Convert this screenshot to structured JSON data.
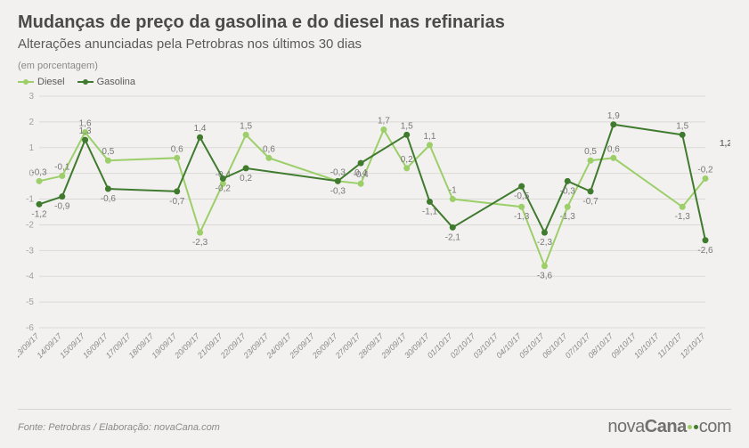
{
  "title": "Mudanças de preço da gasolina e do diesel nas refinarias",
  "subtitle": "Alterações anunciadas pela Petrobras nos últimos 30 dias",
  "unit": "(em porcentagem)",
  "legend": [
    {
      "label": "Diesel",
      "color": "#9ccf6a"
    },
    {
      "label": "Gasolina",
      "color": "#3f7a2e"
    }
  ],
  "chart": {
    "type": "line",
    "background_color": "#f2f1ef",
    "grid_color": "#dcdad6",
    "ylim": [
      -6,
      3
    ],
    "ytick_step": 1,
    "x_labels": [
      "13/09/17",
      "14/09/17",
      "15/09/17",
      "16/09/17",
      "17/09/17",
      "18/09/17",
      "19/09/17",
      "20/09/17",
      "21/09/17",
      "22/09/17",
      "23/09/17",
      "24/09/17",
      "25/09/17",
      "26/09/17",
      "27/09/17",
      "28/09/17",
      "29/09/17",
      "30/09/17",
      "01/10/17",
      "02/10/17",
      "03/10/17",
      "04/10/17",
      "05/10/17",
      "06/10/17",
      "07/10/17",
      "08/10/17",
      "09/10/17",
      "10/10/17",
      "11/10/17",
      "12/10/17"
    ],
    "series": [
      {
        "name": "Diesel",
        "color": "#9ccf6a",
        "line_width": 2,
        "marker_radius": 3.5,
        "label_color": "#787878",
        "label_fontsize": 10,
        "values": [
          -0.3,
          -0.1,
          1.6,
          0.5,
          null,
          null,
          0.6,
          -2.3,
          -0.4,
          1.5,
          0.6,
          null,
          null,
          -0.3,
          -0.4,
          1.7,
          0.2,
          1.1,
          -1,
          null,
          null,
          -1.3,
          -3.6,
          -1.3,
          0.5,
          0.6,
          null,
          null,
          -1.3,
          -0.2
        ]
      },
      {
        "name": "Gasolina",
        "color": "#3f7a2e",
        "line_width": 2,
        "marker_radius": 3.5,
        "label_color": "#787878",
        "label_fontsize": 10,
        "values": [
          -1.2,
          -0.9,
          1.3,
          -0.6,
          null,
          null,
          -0.7,
          1.4,
          -0.2,
          0.2,
          null,
          null,
          null,
          -0.3,
          0.4,
          null,
          1.5,
          -1.1,
          -2.1,
          null,
          null,
          -0.5,
          -2.3,
          -0.3,
          -0.7,
          1.9,
          null,
          null,
          1.5,
          -2.6
        ],
        "extra_end_label": 1.2
      }
    ]
  },
  "footer": {
    "source": "Fonte:  Petrobras  / Elaboração:  novaCana.com"
  },
  "logo": {
    "text_left": "nova",
    "text_mid": "Cana",
    "text_right": "com",
    "dot_colors": [
      "#9ccf6a",
      "#3f7a2e"
    ]
  }
}
